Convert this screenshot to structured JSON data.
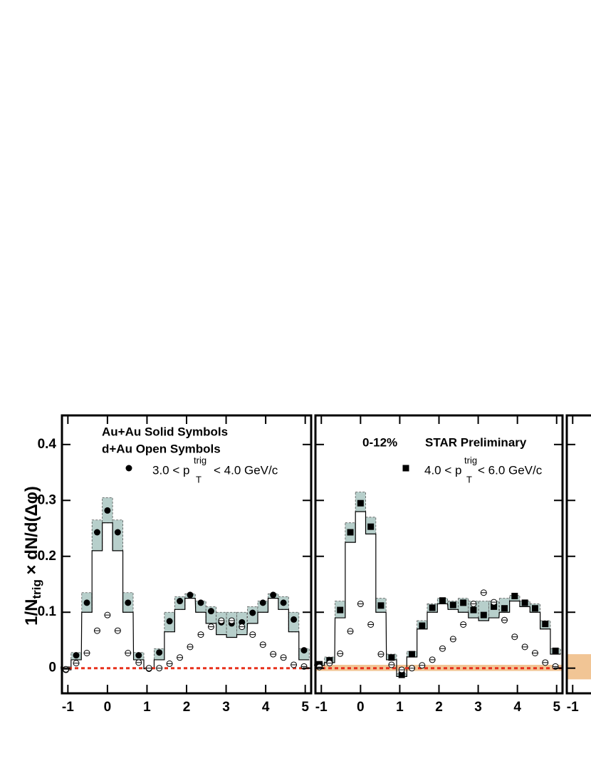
{
  "y_label": {
    "main": "1/N",
    "sub": "trig",
    "rest": " × dN/d(Δφ)"
  },
  "chart_data": [
    {
      "type": "scatter",
      "texts": [
        "Au+Au Solid Symbols",
        "d+Au Open Symbols"
      ],
      "legend_label": {
        "pre": "3.0 < p",
        "sup": "trig",
        "sub": "T",
        "post": "< 4.0 GeV/c"
      },
      "x": [
        -1.05,
        -0.79,
        -0.52,
        -0.26,
        0,
        0.26,
        0.52,
        0.79,
        1.05,
        1.31,
        1.57,
        1.83,
        2.09,
        2.36,
        2.62,
        2.88,
        3.14,
        3.4,
        3.67,
        3.93,
        4.19,
        4.45,
        4.71,
        4.97
      ],
      "xlim": [
        -1.15,
        5.15
      ],
      "ylim": [
        -0.045,
        0.452
      ],
      "xticks": [
        -1,
        0,
        1,
        2,
        3,
        4,
        5
      ],
      "yticks": [
        0,
        0.1,
        0.2,
        0.3,
        0.4
      ],
      "series": [
        {
          "marker": "circle",
          "color": "#000000",
          "values": [
            -0.003,
            0.023,
            0.117,
            0.243,
            0.282,
            0.243,
            0.117,
            0.023,
            -0.001,
            0.028,
            0.084,
            0.12,
            0.131,
            0.117,
            0.102,
            0.082,
            0.08,
            0.082,
            0.099,
            0.117,
            0.131,
            0.117,
            0.087,
            0.032
          ],
          "sys_low": [
            -0.003,
            0.015,
            0.1,
            0.21,
            0.26,
            0.21,
            0.1,
            0.015,
            -0.001,
            0.015,
            0.065,
            0.105,
            0.125,
            0.1,
            0.08,
            0.06,
            0.055,
            0.06,
            0.08,
            0.1,
            0.125,
            0.105,
            0.065,
            0.015
          ],
          "sys_high": [
            0.003,
            0.028,
            0.135,
            0.265,
            0.305,
            0.265,
            0.135,
            0.028,
            0.001,
            0.035,
            0.1,
            0.128,
            0.133,
            0.12,
            0.11,
            0.1,
            0.1,
            0.1,
            0.11,
            0.12,
            0.133,
            0.128,
            0.1,
            0.035
          ],
          "band_color": "#b7cfcb"
        },
        {
          "marker": "open-circle",
          "color": "#000000",
          "values": [
            -0.002,
            0.009,
            0.027,
            0.067,
            0.095,
            0.067,
            0.027,
            0.01,
            0,
            0,
            0.008,
            0.019,
            0.038,
            0.06,
            0.074,
            0.085,
            0.085,
            0.074,
            0.06,
            0.042,
            0.025,
            0.019,
            0.006,
            0.003
          ]
        }
      ],
      "legend_marker": "circle",
      "zero_line_color": "#e8301c"
    },
    {
      "type": "scatter",
      "texts": [
        "0-12%",
        "STAR Preliminary"
      ],
      "legend_label": {
        "pre": "4.0 < p",
        "sup": "trig",
        "sub": "T",
        "post": "< 6.0 GeV/c"
      },
      "x": [
        -1.05,
        -0.79,
        -0.52,
        -0.26,
        0,
        0.26,
        0.52,
        0.79,
        1.05,
        1.31,
        1.57,
        1.83,
        2.09,
        2.36,
        2.62,
        2.88,
        3.14,
        3.4,
        3.67,
        3.93,
        4.19,
        4.45,
        4.71,
        4.97
      ],
      "xlim": [
        -1.15,
        5.15
      ],
      "ylim": [
        -0.045,
        0.452
      ],
      "xticks": [
        -1,
        0,
        1,
        2,
        3,
        4,
        5
      ],
      "yticks": [
        0,
        0.1,
        0.2,
        0.3,
        0.4
      ],
      "series": [
        {
          "marker": "square",
          "color": "#000000",
          "values": [
            0.007,
            0.014,
            0.104,
            0.243,
            0.295,
            0.253,
            0.112,
            0.019,
            -0.012,
            0.025,
            0.076,
            0.108,
            0.121,
            0.113,
            0.117,
            0.104,
            0.095,
            0.11,
            0.107,
            0.129,
            0.117,
            0.107,
            0.079,
            0.031
          ],
          "sys_low": [
            0.005,
            0.01,
            0.09,
            0.225,
            0.28,
            0.24,
            0.1,
            0.015,
            -0.015,
            0.02,
            0.07,
            0.1,
            0.115,
            0.105,
            0.1,
            0.09,
            0.085,
            0.09,
            0.1,
            0.12,
            0.11,
            0.1,
            0.07,
            0.025
          ],
          "sys_high": [
            0.009,
            0.02,
            0.12,
            0.26,
            0.315,
            0.27,
            0.125,
            0.025,
            -0.01,
            0.03,
            0.085,
            0.115,
            0.125,
            0.12,
            0.125,
            0.12,
            0.12,
            0.12,
            0.125,
            0.13,
            0.12,
            0.115,
            0.085,
            0.035
          ],
          "band_color": "#b7cfcb"
        },
        {
          "marker": "open-circle",
          "color": "#000000",
          "values": [
            0.002,
            0.009,
            0.026,
            0.066,
            0.115,
            0.078,
            0.025,
            0.006,
            -0.003,
            0,
            0.005,
            0.015,
            0.035,
            0.052,
            0.078,
            0.115,
            0.135,
            0.118,
            0.086,
            0.056,
            0.038,
            0.027,
            0.01,
            0.003
          ]
        }
      ],
      "legend_marker": "square",
      "zero_line_color": "#e8301c",
      "zero_band": [
        -0.005,
        0.006
      ],
      "zero_band_color": "#f1c595"
    },
    {
      "type": "scatter",
      "xlim": [
        -1.15,
        5.15
      ],
      "ylim": [
        -0.045,
        0.452
      ],
      "xticks": [
        -1
      ],
      "yticks": [
        0,
        0.1,
        0.2,
        0.3,
        0.4
      ],
      "zero_band": [
        -0.02,
        0.025
      ],
      "zero_band_color": "#f1c595"
    }
  ]
}
